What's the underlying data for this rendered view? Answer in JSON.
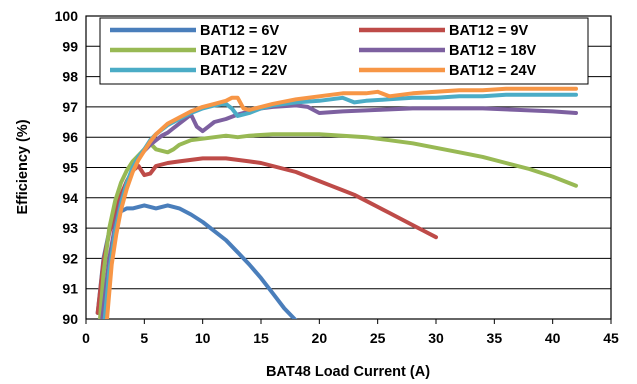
{
  "chart_data": {
    "type": "line",
    "title": "",
    "xlabel": "BAT48 Load Current (A)",
    "ylabel": "Efficiency (%)",
    "xlim": [
      0,
      45
    ],
    "ylim": [
      90,
      100
    ],
    "xticks": [
      0,
      5,
      10,
      15,
      20,
      25,
      30,
      35,
      40,
      45
    ],
    "yticks": [
      90,
      91,
      92,
      93,
      94,
      95,
      96,
      97,
      98,
      99,
      100
    ],
    "grid": "horizontal",
    "legend_position": "top",
    "series": [
      {
        "name": "BAT12 = 6V",
        "color": "#4a7ebb",
        "x": [
          1,
          1.5,
          2,
          2.5,
          3,
          3.5,
          4,
          4.5,
          5,
          5.5,
          6,
          6.5,
          7,
          8,
          9,
          10,
          11,
          12,
          13,
          14,
          15,
          16,
          17,
          18
        ],
        "y": [
          90.2,
          92.0,
          92.9,
          93.35,
          93.55,
          93.65,
          93.65,
          93.7,
          93.75,
          93.7,
          93.65,
          93.7,
          93.75,
          93.65,
          93.45,
          93.2,
          92.9,
          92.6,
          92.2,
          91.8,
          91.35,
          90.85,
          90.35,
          89.95
        ]
      },
      {
        "name": "BAT12 = 9V",
        "color": "#be4b48",
        "x": [
          1,
          1.5,
          2,
          2.5,
          3,
          3.5,
          4,
          4.5,
          5,
          5.5,
          6,
          7,
          8,
          9,
          10,
          11,
          12,
          13,
          14,
          15,
          16,
          17,
          18,
          19,
          20,
          21,
          22,
          23,
          24,
          25,
          26,
          27,
          28,
          29,
          30
        ],
        "y": [
          90.2,
          91.9,
          92.85,
          93.55,
          94.1,
          94.55,
          94.9,
          95.05,
          94.75,
          94.8,
          95.05,
          95.15,
          95.2,
          95.25,
          95.3,
          95.3,
          95.3,
          95.25,
          95.2,
          95.15,
          95.05,
          94.95,
          94.85,
          94.7,
          94.55,
          94.4,
          94.25,
          94.1,
          93.9,
          93.7,
          93.5,
          93.3,
          93.1,
          92.9,
          92.7
        ]
      },
      {
        "name": "BAT12 = 12V",
        "color": "#98b954",
        "x": [
          1.2,
          1.5,
          2,
          2.5,
          3,
          3.5,
          4,
          4.5,
          5,
          5.5,
          6,
          6.5,
          7,
          7.5,
          8,
          9,
          10,
          11,
          12,
          13,
          14,
          16,
          18,
          20,
          22,
          24,
          26,
          28,
          30,
          32,
          34,
          36,
          38,
          40,
          42
        ],
        "y": [
          90.0,
          91.5,
          93.0,
          93.9,
          94.5,
          94.9,
          95.2,
          95.4,
          95.6,
          95.8,
          95.6,
          95.55,
          95.5,
          95.6,
          95.75,
          95.9,
          95.95,
          96.0,
          96.05,
          96.0,
          96.05,
          96.1,
          96.1,
          96.1,
          96.05,
          96.0,
          95.9,
          95.8,
          95.65,
          95.5,
          95.35,
          95.15,
          94.95,
          94.7,
          94.4
        ]
      },
      {
        "name": "BAT12 = 18V",
        "color": "#7d60a0",
        "x": [
          1.4,
          2,
          2.5,
          3,
          3.5,
          4,
          4.5,
          5,
          5.5,
          6,
          6.5,
          7,
          7.5,
          8,
          8.5,
          9,
          9.5,
          10,
          10.5,
          11,
          12,
          13,
          14,
          15,
          16,
          18,
          19,
          20,
          22,
          25,
          28,
          31,
          34,
          37,
          40,
          42
        ],
        "y": [
          90.0,
          92.0,
          93.1,
          93.9,
          94.5,
          94.95,
          95.3,
          95.55,
          95.75,
          95.9,
          96.05,
          96.15,
          96.3,
          96.45,
          96.6,
          96.75,
          96.35,
          96.2,
          96.35,
          96.5,
          96.6,
          96.75,
          96.85,
          96.95,
          97.0,
          97.05,
          97.0,
          96.8,
          96.85,
          96.9,
          96.95,
          96.95,
          96.95,
          96.9,
          96.85,
          96.8
        ]
      },
      {
        "name": "BAT12 = 22V",
        "color": "#4bacc6",
        "x": [
          1.6,
          2,
          2.5,
          3,
          3.5,
          4,
          4.5,
          5,
          5.5,
          6,
          7,
          8,
          9,
          10,
          11,
          12,
          12.5,
          13,
          14,
          15,
          16,
          18,
          20,
          22,
          23,
          24,
          26,
          28,
          30,
          32,
          34,
          36,
          38,
          40,
          42
        ],
        "y": [
          90.0,
          91.6,
          92.9,
          93.8,
          94.5,
          95.0,
          95.35,
          95.6,
          95.9,
          96.1,
          96.4,
          96.6,
          96.8,
          96.95,
          97.05,
          97.1,
          96.95,
          96.7,
          96.8,
          96.95,
          97.05,
          97.15,
          97.2,
          97.3,
          97.15,
          97.2,
          97.25,
          97.3,
          97.3,
          97.35,
          97.35,
          97.4,
          97.4,
          97.4,
          97.4
        ]
      },
      {
        "name": "BAT12 = 24V",
        "color": "#f79646",
        "x": [
          1.8,
          2.2,
          2.6,
          3,
          3.5,
          4,
          4.5,
          5,
          5.5,
          6,
          7,
          8,
          9,
          10,
          11,
          12,
          12.5,
          13,
          13.5,
          14,
          15,
          16,
          18,
          20,
          22,
          24,
          25,
          26,
          28,
          30,
          32,
          34,
          36,
          38,
          40,
          42
        ],
        "y": [
          90.0,
          91.8,
          92.8,
          93.6,
          94.3,
          94.85,
          95.25,
          95.55,
          95.85,
          96.1,
          96.45,
          96.65,
          96.85,
          97.0,
          97.1,
          97.2,
          97.3,
          97.3,
          96.95,
          96.9,
          97.0,
          97.1,
          97.25,
          97.35,
          97.45,
          97.45,
          97.5,
          97.35,
          97.45,
          97.5,
          97.55,
          97.55,
          97.6,
          97.6,
          97.6,
          97.6
        ]
      }
    ]
  }
}
